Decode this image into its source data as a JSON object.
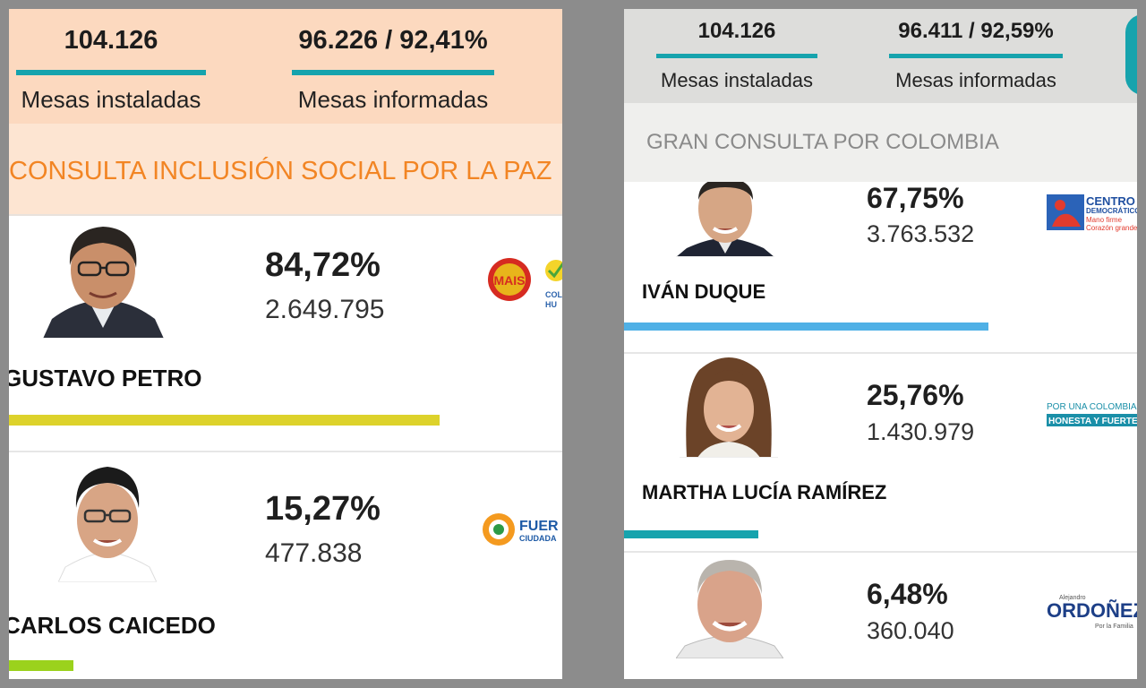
{
  "left_panel": {
    "stats": {
      "installed_value": "104.126",
      "installed_label": "Mesas instaladas",
      "reported_value": "96.226 / 92,41%",
      "reported_label": "Mesas informadas"
    },
    "consulta_title": "CONSULTA INCLUSIÓN SOCIAL POR LA PAZ",
    "candidates": [
      {
        "name": "GUSTAVO PETRO",
        "percent": "84,72%",
        "votes": "2.649.795",
        "share": 84.72,
        "bar_color": "#ddd22b",
        "party": "MAIS",
        "party2": "COLOMBIA HUMANA"
      },
      {
        "name": "CARLOS CAICEDO",
        "percent": "15,27%",
        "votes": "477.838",
        "share": 15.27,
        "bar_color": "#9bd21c",
        "party": "FUERZA CIUDADANA"
      }
    ]
  },
  "right_panel": {
    "stats": {
      "installed_value": "104.126",
      "installed_label": "Mesas instaladas",
      "reported_value": "96.411 / 92,59%",
      "reported_label": "Mesas informadas"
    },
    "consulta_title": "GRAN CONSULTA POR COLOMBIA",
    "candidates": [
      {
        "name": "IVÁN DUQUE",
        "percent": "67,75%",
        "votes": "3.763.532",
        "share": 67.75,
        "bar_color": "#4fb0e6",
        "party_line1": "CENTRO",
        "party_line2": "DEMOCRÁTICO",
        "party_line3": "Mano firme",
        "party_line4": "Corazón grande"
      },
      {
        "name": "MARTHA LUCÍA RAMÍREZ",
        "percent": "25,76%",
        "votes": "1.430.979",
        "share": 25.76,
        "bar_color": "#16a3ad",
        "party_line1": "POR UNA COLOMBIA",
        "party_line2": "HONESTA Y FUERTE"
      },
      {
        "name": "",
        "percent": "6,48%",
        "votes": "360.040",
        "share": 6.48,
        "bar_color": "#16a3ad",
        "party_line1": "Alejandro",
        "party_line2": "ORDOÑEZ",
        "party_line3": "Por la Familia"
      }
    ]
  },
  "colors": {
    "accent_teal": "#16a3ad",
    "orange_title": "#f28524",
    "left_header_bg": "#fcd9bf",
    "right_header_bg": "#dddddb"
  }
}
